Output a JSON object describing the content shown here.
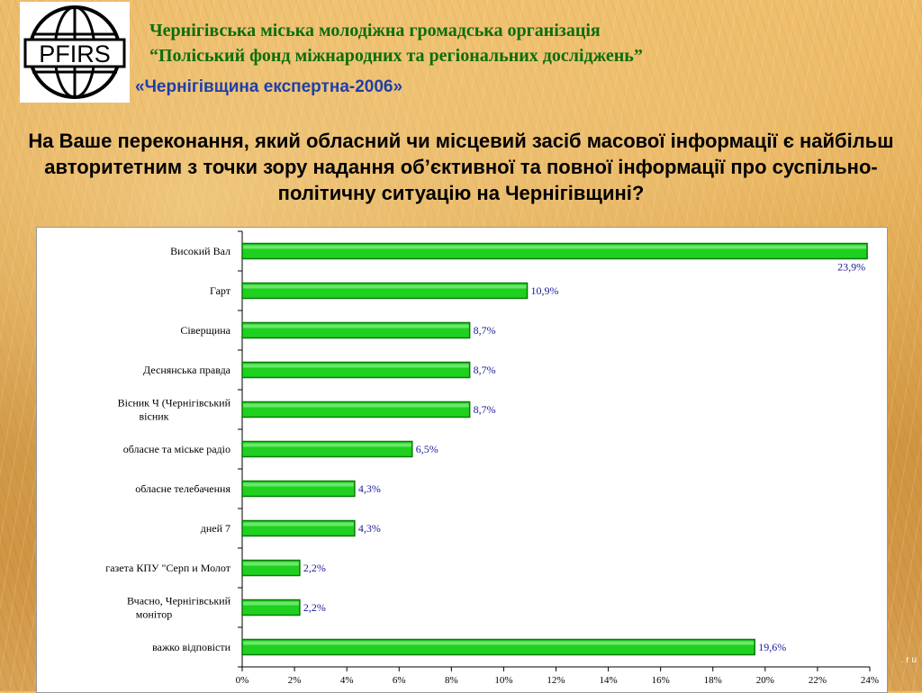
{
  "header": {
    "logo_text": "PFIRS",
    "org_line1": "Чернігівська міська молодіжна громадська організація",
    "org_line2": "“Поліський фонд міжнародних та регіональних досліджень”",
    "project": "«Чернігівщина експертна-2006»"
  },
  "question": "На Ваше переконання, який обласний чи місцевий засіб масової інформації є найбільш авторитетним з точки зору надання об’єктивної та повної інформації про суспільно-політичну ситуацію на Чернігівщині?",
  "colors": {
    "bar": "#1fd11f",
    "bar_dark": "#0a7a0a",
    "label": "#1a1a9a",
    "text": "#000000"
  },
  "chart_data": {
    "type": "bar",
    "orientation": "horizontal",
    "categories": [
      [
        "Високий Вал"
      ],
      [
        "Гарт"
      ],
      [
        "Сіверщина"
      ],
      [
        "Деснянська правда"
      ],
      [
        "Вісник Ч (Чернігівський",
        "вісник"
      ],
      [
        "обласне та міське радіо"
      ],
      [
        "обласне телебачення"
      ],
      [
        "дней 7"
      ],
      [
        "газета КПУ \"Серп и Молот"
      ],
      [
        "Вчасно, Чернігівський",
        "монітор"
      ],
      [
        "важко відповісти"
      ]
    ],
    "values": [
      23.9,
      10.9,
      8.7,
      8.7,
      8.7,
      6.5,
      4.3,
      4.3,
      2.2,
      2.2,
      19.6
    ],
    "data_labels": [
      "23,9%",
      "10,9%",
      "8,7%",
      "8,7%",
      "8,7%",
      "6,5%",
      "4,3%",
      "4,3%",
      "2,2%",
      "2,2%",
      "19,6%"
    ],
    "xlim": [
      0,
      24
    ],
    "xticks": [
      0,
      2,
      4,
      6,
      8,
      10,
      12,
      14,
      16,
      18,
      20,
      22,
      24
    ],
    "xtick_labels": [
      "0%",
      "2%",
      "4%",
      "6%",
      "8%",
      "10%",
      "12%",
      "14%",
      "16%",
      "18%",
      "20%",
      "22%",
      "24%"
    ],
    "grid": false,
    "legend": "none"
  },
  "footer_mark": ". r u"
}
